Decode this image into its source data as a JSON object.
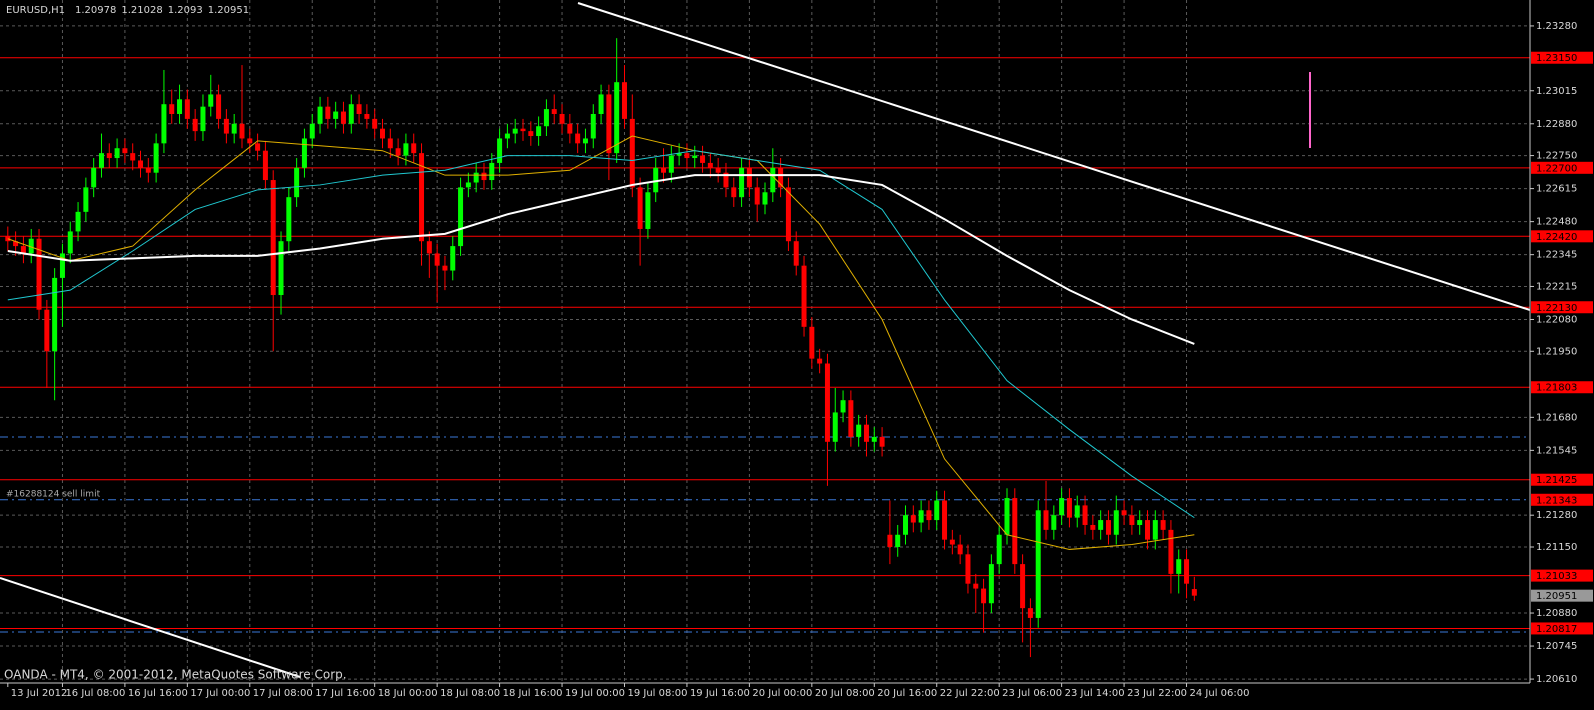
{
  "chart_data": {
    "type": "candlestick",
    "title": "EURUSD,H1",
    "footer": "OANDA - MT4, © 2001-2012, MetaQuotes Software Corp.",
    "up_color": "#00ff00",
    "down_color": "#ff0000",
    "grid": true,
    "xlim": [
      -1,
      195
    ],
    "ylim": [
      1.20594,
      1.23386
    ],
    "xticks": [
      {
        "value": 0,
        "label": "13 Jul 2012"
      },
      {
        "value": 7,
        "label": "16 Jul 08:00"
      },
      {
        "value": 15,
        "label": "16 Jul 16:00"
      },
      {
        "value": 23,
        "label": "17 Jul 00:00"
      },
      {
        "value": 31,
        "label": "17 Jul 08:00"
      },
      {
        "value": 39,
        "label": "17 Jul 16:00"
      },
      {
        "value": 47,
        "label": "18 Jul 00:00"
      },
      {
        "value": 55,
        "label": "18 Jul 08:00"
      },
      {
        "value": 63,
        "label": "18 Jul 16:00"
      },
      {
        "value": 71,
        "label": "19 Jul 00:00"
      },
      {
        "value": 79,
        "label": "19 Jul 08:00"
      },
      {
        "value": 87,
        "label": "19 Jul 16:00"
      },
      {
        "value": 95,
        "label": "20 Jul 00:00"
      },
      {
        "value": 103,
        "label": "20 Jul 08:00"
      },
      {
        "value": 111,
        "label": "20 Jul 16:00"
      },
      {
        "value": 119,
        "label": "22 Jul 22:00"
      },
      {
        "value": 127,
        "label": "23 Jul 06:00"
      },
      {
        "value": 135,
        "label": "23 Jul 14:00"
      },
      {
        "value": 143,
        "label": "23 Jul 22:00"
      },
      {
        "value": 151,
        "label": "24 Jul 06:00"
      }
    ],
    "yticks": [
      {
        "value": 1.2328,
        "label": "1.23280"
      },
      {
        "value": 1.23015,
        "label": "1.23015"
      },
      {
        "value": 1.2288,
        "label": "1.22880"
      },
      {
        "value": 1.2275,
        "label": "1.22750"
      },
      {
        "value": 1.22615,
        "label": "1.22615"
      },
      {
        "value": 1.2248,
        "label": "1.22480"
      },
      {
        "value": 1.22345,
        "label": "1.22345"
      },
      {
        "value": 1.22215,
        "label": "1.22215"
      },
      {
        "value": 1.2208,
        "label": "1.22080"
      },
      {
        "value": 1.2195,
        "label": "1.21950"
      },
      {
        "value": 1.2168,
        "label": "1.21680"
      },
      {
        "value": 1.21545,
        "label": "1.21545"
      },
      {
        "value": 1.2128,
        "label": "1.21280"
      },
      {
        "value": 1.2115,
        "label": "1.21150"
      },
      {
        "value": 1.2088,
        "label": "1.20880"
      },
      {
        "value": 1.20745,
        "label": "1.20745"
      },
      {
        "value": 1.2061,
        "label": "1.20610"
      }
    ],
    "open": [
      1.2242,
      1.224,
      1.2238,
      1.2235,
      1.2241,
      1.2212,
      1.2195,
      1.2225,
      1.2235,
      1.2244,
      1.2252,
      1.2262,
      1.227,
      1.2276,
      1.2274,
      1.2278,
      1.2276,
      1.2273,
      1.227,
      1.2268,
      1.228,
      1.2296,
      1.2292,
      1.2298,
      1.229,
      1.2285,
      1.2295,
      1.23,
      1.229,
      1.2284,
      1.2288,
      1.2282,
      1.228,
      1.2277,
      1.2265,
      1.2218,
      1.224,
      1.2258,
      1.227,
      1.2282,
      1.2288,
      1.2295,
      1.229,
      1.2293,
      1.2288,
      1.2296,
      1.2292,
      1.229,
      1.2286,
      1.2282,
      1.2278,
      1.2275,
      1.228,
      1.2276,
      1.224,
      1.2235,
      1.223,
      1.2228,
      1.2238,
      1.2262,
      1.2264,
      1.2268,
      1.2265,
      1.2272,
      1.2282,
      1.2284,
      1.2286,
      1.2285,
      1.2283,
      1.2287,
      1.2294,
      1.2292,
      1.2288,
      1.2284,
      1.228,
      1.2282,
      1.2292,
      1.23,
      1.2276,
      1.2305,
      1.229,
      1.2262,
      1.2245,
      1.226,
      1.227,
      1.2268,
      1.2275,
      1.2276,
      1.2274,
      1.2275,
      1.2272,
      1.227,
      1.2268,
      1.2262,
      1.2258,
      1.227,
      1.2262,
      1.2255,
      1.226,
      1.227,
      1.2262,
      1.224,
      1.223,
      1.2205,
      1.2192,
      1.219,
      1.2158,
      1.217,
      1.2175,
      1.216,
      1.2165,
      1.2158,
      1.216,
      1.212,
      1.2115,
      1.212,
      1.2128,
      1.2125,
      1.213,
      1.2126,
      1.2134,
      1.2118,
      1.2116,
      1.2112,
      1.21,
      1.2098,
      1.2092,
      1.2108,
      1.212,
      1.2135,
      1.2108,
      1.209,
      1.2086,
      1.213,
      1.2122,
      1.2128,
      1.2135,
      1.2127,
      1.2132,
      1.2124,
      1.2122,
      1.2126,
      1.212,
      1.213,
      1.2128,
      1.2124,
      1.2126,
      1.2118,
      1.2126,
      1.2122,
      1.2104,
      1.211,
      1.20978
    ],
    "high": [
      1.2246,
      1.2244,
      1.2242,
      1.2245,
      1.2245,
      1.2216,
      1.2229,
      1.2239,
      1.2248,
      1.2256,
      1.2266,
      1.2274,
      1.2284,
      1.228,
      1.2282,
      1.2282,
      1.228,
      1.2277,
      1.2274,
      1.2284,
      1.231,
      1.2302,
      1.2304,
      1.2302,
      1.2294,
      1.23,
      1.2308,
      1.2304,
      1.2294,
      1.2292,
      1.2312,
      1.2286,
      1.2284,
      1.2281,
      1.2269,
      1.2244,
      1.2262,
      1.2274,
      1.2286,
      1.2292,
      1.2299,
      1.2299,
      1.2297,
      1.2297,
      1.23,
      1.23,
      1.2296,
      1.2294,
      1.229,
      1.2286,
      1.2282,
      1.2284,
      1.2284,
      1.228,
      1.2244,
      1.2239,
      1.2234,
      1.2242,
      1.2266,
      1.2268,
      1.2272,
      1.2272,
      1.2276,
      1.2286,
      1.2288,
      1.229,
      1.229,
      1.2289,
      1.2291,
      1.2298,
      1.23,
      1.2296,
      1.2292,
      1.2288,
      1.2286,
      1.2296,
      1.2304,
      1.2304,
      1.2323,
      1.2312,
      1.23,
      1.2266,
      1.2264,
      1.2274,
      1.2278,
      1.2279,
      1.228,
      1.228,
      1.2279,
      1.2279,
      1.2276,
      1.2274,
      1.2272,
      1.2266,
      1.2274,
      1.2274,
      1.2266,
      1.2264,
      1.2278,
      1.2274,
      1.2266,
      1.2244,
      1.2234,
      1.2209,
      1.2196,
      1.2194,
      1.218,
      1.2179,
      1.2179,
      1.2169,
      1.2169,
      1.2164,
      1.2164,
      1.2134,
      1.2124,
      1.2132,
      1.2132,
      1.2134,
      1.2134,
      1.2138,
      1.2138,
      1.2122,
      1.212,
      1.2116,
      1.2104,
      1.2102,
      1.2112,
      1.2124,
      1.2139,
      1.2139,
      1.2112,
      1.2094,
      1.2134,
      1.2142,
      1.2132,
      1.2139,
      1.2139,
      1.2136,
      1.2136,
      1.2128,
      1.213,
      1.213,
      1.2136,
      1.2134,
      1.2132,
      1.213,
      1.213,
      1.213,
      1.213,
      1.2126,
      1.2114,
      1.2114,
      1.21028
    ],
    "low": [
      1.2236,
      1.2234,
      1.2231,
      1.2231,
      1.2208,
      1.218,
      1.2175,
      1.2205,
      1.2231,
      1.224,
      1.2248,
      1.2258,
      1.2266,
      1.227,
      1.227,
      1.2272,
      1.2269,
      1.2266,
      1.2264,
      1.2264,
      1.2276,
      1.2288,
      1.2288,
      1.2286,
      1.2281,
      1.2281,
      1.2291,
      1.2286,
      1.228,
      1.228,
      1.2278,
      1.2276,
      1.2273,
      1.2261,
      1.2195,
      1.221,
      1.2236,
      1.2254,
      1.2266,
      1.2278,
      1.2284,
      1.2286,
      1.2286,
      1.2284,
      1.2284,
      1.2288,
      1.2286,
      1.2282,
      1.2278,
      1.2274,
      1.2271,
      1.2271,
      1.2272,
      1.223,
      1.2225,
      1.2215,
      1.222,
      1.2224,
      1.2234,
      1.2258,
      1.226,
      1.2261,
      1.2261,
      1.2268,
      1.2278,
      1.228,
      1.2281,
      1.2279,
      1.2279,
      1.2283,
      1.2288,
      1.2284,
      1.228,
      1.2276,
      1.2276,
      1.2278,
      1.2288,
      1.2265,
      1.2272,
      1.2286,
      1.2258,
      1.223,
      1.2241,
      1.2256,
      1.2264,
      1.2264,
      1.2271,
      1.227,
      1.227,
      1.2268,
      1.2266,
      1.2264,
      1.2258,
      1.2254,
      1.2254,
      1.2258,
      1.2248,
      1.2251,
      1.2256,
      1.2258,
      1.2236,
      1.2226,
      1.2201,
      1.2188,
      1.2186,
      1.214,
      1.2154,
      1.2166,
      1.2156,
      1.2156,
      1.2152,
      1.2154,
      1.2152,
      1.2108,
      1.2111,
      1.2116,
      1.2121,
      1.2121,
      1.2122,
      1.2122,
      1.2114,
      1.2112,
      1.2108,
      1.2096,
      1.2088,
      1.208,
      1.2088,
      1.2104,
      1.2116,
      1.2104,
      1.2076,
      1.207,
      1.2082,
      1.2118,
      1.2118,
      1.2124,
      1.2123,
      1.2123,
      1.212,
      1.2118,
      1.2118,
      1.2116,
      1.2116,
      1.2124,
      1.212,
      1.212,
      1.2114,
      1.2114,
      1.2118,
      1.2096,
      1.2096,
      1.2094,
      1.2093
    ],
    "close": [
      1.224,
      1.2238,
      1.2235,
      1.2241,
      1.2212,
      1.2195,
      1.2225,
      1.2235,
      1.2244,
      1.2252,
      1.2262,
      1.227,
      1.2276,
      1.2274,
      1.2278,
      1.2276,
      1.2273,
      1.227,
      1.2268,
      1.228,
      1.2296,
      1.2292,
      1.2298,
      1.229,
      1.2285,
      1.2295,
      1.23,
      1.229,
      1.2284,
      1.2288,
      1.2282,
      1.228,
      1.2277,
      1.2265,
      1.2218,
      1.224,
      1.2258,
      1.227,
      1.2282,
      1.2288,
      1.2295,
      1.229,
      1.2293,
      1.2288,
      1.2296,
      1.2292,
      1.229,
      1.2286,
      1.2282,
      1.2278,
      1.2275,
      1.228,
      1.2276,
      1.224,
      1.2235,
      1.223,
      1.2228,
      1.2238,
      1.2262,
      1.2264,
      1.2268,
      1.2265,
      1.2272,
      1.2282,
      1.2284,
      1.2286,
      1.2285,
      1.2283,
      1.2287,
      1.2294,
      1.2292,
      1.2288,
      1.2284,
      1.228,
      1.2282,
      1.2292,
      1.23,
      1.2276,
      1.2305,
      1.229,
      1.2262,
      1.2245,
      1.226,
      1.227,
      1.2268,
      1.2275,
      1.2276,
      1.2274,
      1.2275,
      1.2272,
      1.227,
      1.2268,
      1.2262,
      1.2258,
      1.227,
      1.2262,
      1.2255,
      1.226,
      1.227,
      1.2262,
      1.224,
      1.223,
      1.2205,
      1.2192,
      1.219,
      1.2158,
      1.217,
      1.2175,
      1.216,
      1.2165,
      1.2158,
      1.216,
      1.2156,
      1.2115,
      1.212,
      1.2128,
      1.2125,
      1.213,
      1.2126,
      1.2134,
      1.2118,
      1.2116,
      1.2112,
      1.21,
      1.2098,
      1.2092,
      1.2108,
      1.212,
      1.2135,
      1.2108,
      1.209,
      1.2086,
      1.213,
      1.2122,
      1.2128,
      1.2135,
      1.2127,
      1.2132,
      1.2124,
      1.2122,
      1.2126,
      1.212,
      1.213,
      1.2128,
      1.2124,
      1.2126,
      1.2118,
      1.2126,
      1.2122,
      1.2104,
      1.211,
      1.21,
      1.20951
    ],
    "lines": [
      {
        "color": "#e0b000",
        "x": [
          0,
          8,
          16,
          24,
          32,
          40,
          48,
          56,
          64,
          72,
          80,
          88,
          96,
          104,
          112,
          120,
          128,
          136,
          144,
          152
        ],
        "values": [
          1.2241,
          1.2232,
          1.2238,
          1.2261,
          1.2281,
          1.2279,
          1.2277,
          1.2267,
          1.2267,
          1.2269,
          1.2283,
          1.2277,
          1.2273,
          1.2247,
          1.2208,
          1.2151,
          1.212,
          1.2114,
          1.2116,
          1.212
        ]
      },
      {
        "color": "#20c8d0",
        "x": [
          0,
          8,
          16,
          24,
          32,
          40,
          48,
          56,
          64,
          72,
          80,
          88,
          96,
          104,
          112,
          120,
          128,
          136,
          144,
          152
        ],
        "values": [
          1.2216,
          1.222,
          1.2236,
          1.2253,
          1.2261,
          1.2263,
          1.2267,
          1.2269,
          1.2275,
          1.2275,
          1.2273,
          1.2277,
          1.2273,
          1.2269,
          1.2253,
          1.2216,
          1.2183,
          1.2163,
          1.2144,
          1.2127
        ]
      },
      {
        "color": "#ffffff",
        "x": [
          0,
          8,
          16,
          24,
          32,
          40,
          48,
          56,
          64,
          72,
          80,
          88,
          96,
          104,
          112,
          120,
          128,
          136,
          144,
          152
        ],
        "values": [
          1.2236,
          1.2232,
          1.2233,
          1.2234,
          1.2234,
          1.2237,
          1.2241,
          1.2243,
          1.2251,
          1.2257,
          1.2263,
          1.2267,
          1.2267,
          1.2267,
          1.2263,
          1.2249,
          1.2234,
          1.222,
          1.2208,
          1.2198
        ]
      }
    ],
    "levels_color": "#ff0000",
    "levels": [
      {
        "value": 1.2315,
        "label": "1.23150"
      },
      {
        "value": 1.227,
        "label": "1.22700"
      },
      {
        "value": 1.2242,
        "label": "1.22420"
      },
      {
        "value": 1.2213,
        "label": "1.22130"
      },
      {
        "value": 1.21803,
        "label": "1.21803"
      },
      {
        "value": 1.21425,
        "label": "1.21425"
      },
      {
        "value": 1.21033,
        "label": "1.21033"
      },
      {
        "value": 1.20817,
        "label": "1.20817"
      }
    ],
    "order": {
      "text": "#16288124 sell limit",
      "price": {
        "value": 1.21343,
        "label": "1.21343"
      }
    }
  }
}
